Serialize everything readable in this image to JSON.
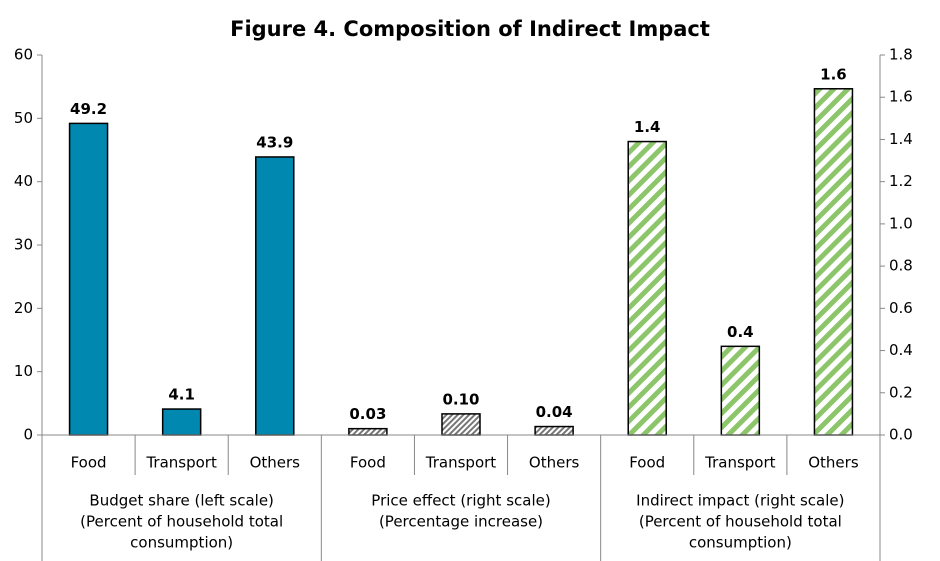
{
  "chart_data": {
    "type": "grouped_bar",
    "title": "Figure 4. Composition of Indirect Impact",
    "ylim": [
      0,
      60
    ],
    "yticks": [
      0,
      10,
      20,
      30,
      40,
      50,
      60
    ],
    "y2lim": [
      0,
      1.8
    ],
    "y2ticks": [
      {
        "value": 0,
        "label": "0.0"
      },
      0.2,
      0.4,
      0.6,
      0.8,
      {
        "value": 1,
        "label": "1.0"
      },
      1.2,
      1.4,
      1.6,
      1.8
    ],
    "groups": [
      {
        "label_lines": [
          "Budget share (left scale)",
          "(Percent of household total",
          "consumption)"
        ],
        "categories": [
          "Food",
          "Transport",
          "Others"
        ],
        "values": [
          49.2,
          4.1,
          43.9
        ],
        "axis": "y",
        "color": "#0088b0",
        "pattern": "solid"
      },
      {
        "label_lines": [
          "Price effect (right scale)",
          "(Percentage increase)"
        ],
        "categories": [
          "Food",
          "Transport",
          "Others"
        ],
        "values": [
          0.03,
          0.1,
          0.04
        ],
        "value_labels": [
          "0.03",
          "0.10",
          "0.04"
        ],
        "axis": "y2",
        "color": "#777777",
        "pattern": "hatch"
      },
      {
        "label_lines": [
          "Indirect impact (right scale)",
          "(Percent of household total",
          "consumption)"
        ],
        "categories": [
          "Food",
          "Transport",
          "Others"
        ],
        "values": [
          1.39,
          0.42,
          1.64
        ],
        "value_labels": [
          "1.4",
          "0.4",
          "1.6"
        ],
        "axis": "y2",
        "color": "#8cc56a",
        "pattern": "stripes"
      }
    ]
  }
}
